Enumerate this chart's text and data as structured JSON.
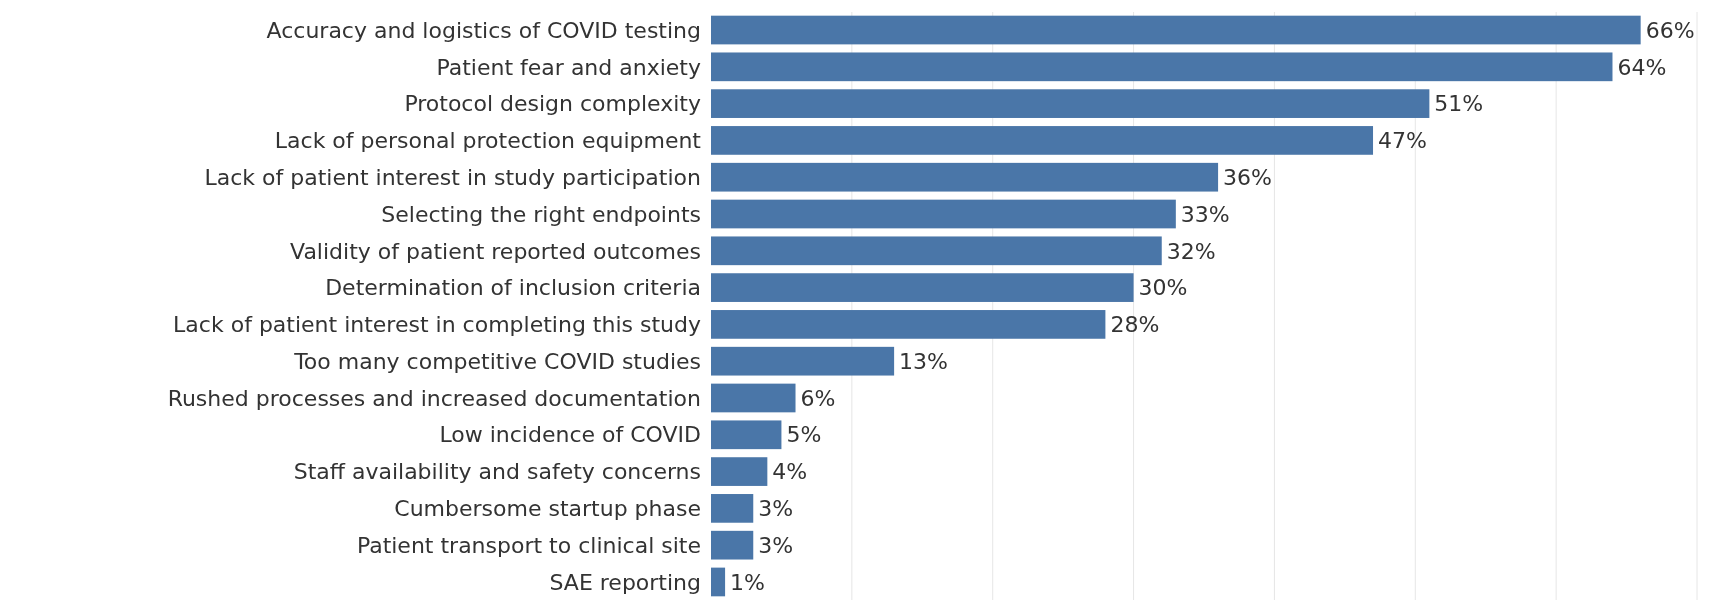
{
  "chart_data": {
    "type": "bar",
    "orientation": "horizontal",
    "categories": [
      "Accuracy and logistics of COVID testing",
      "Patient fear and anxiety",
      "Protocol design complexity",
      "Lack of personal protection equipment",
      "Lack of patient interest in study participation",
      "Selecting the right endpoints",
      "Validity of patient reported outcomes",
      "Determination of inclusion criteria",
      "Lack of patient interest in completing this study",
      "Too many competitive COVID studies",
      "Rushed processes and increased documentation",
      "Low incidence of COVID",
      "Staff availability and safety concerns",
      "Cumbersome startup phase",
      "Patient transport to clinical site",
      "SAE reporting"
    ],
    "values": [
      66,
      64,
      51,
      47,
      36,
      33,
      32,
      30,
      28,
      13,
      6,
      5,
      4,
      3,
      3,
      1
    ],
    "value_labels": [
      "66%",
      "64%",
      "51%",
      "47%",
      "36%",
      "33%",
      "32%",
      "30%",
      "28%",
      "13%",
      "6%",
      "5%",
      "4%",
      "3%",
      "3%",
      "1%"
    ],
    "color": "#4a76a8",
    "xlim": [
      0,
      70
    ],
    "xticks": [
      {
        "value": 10,
        "label": null
      },
      {
        "value": 20,
        "label": null
      },
      {
        "value": 30,
        "label": null
      },
      {
        "value": 40,
        "label": null
      },
      {
        "value": 50,
        "label": null
      },
      {
        "value": 60,
        "label": null
      },
      {
        "value": 70,
        "label": null
      }
    ],
    "grid": "x",
    "tick_labels": "y"
  }
}
